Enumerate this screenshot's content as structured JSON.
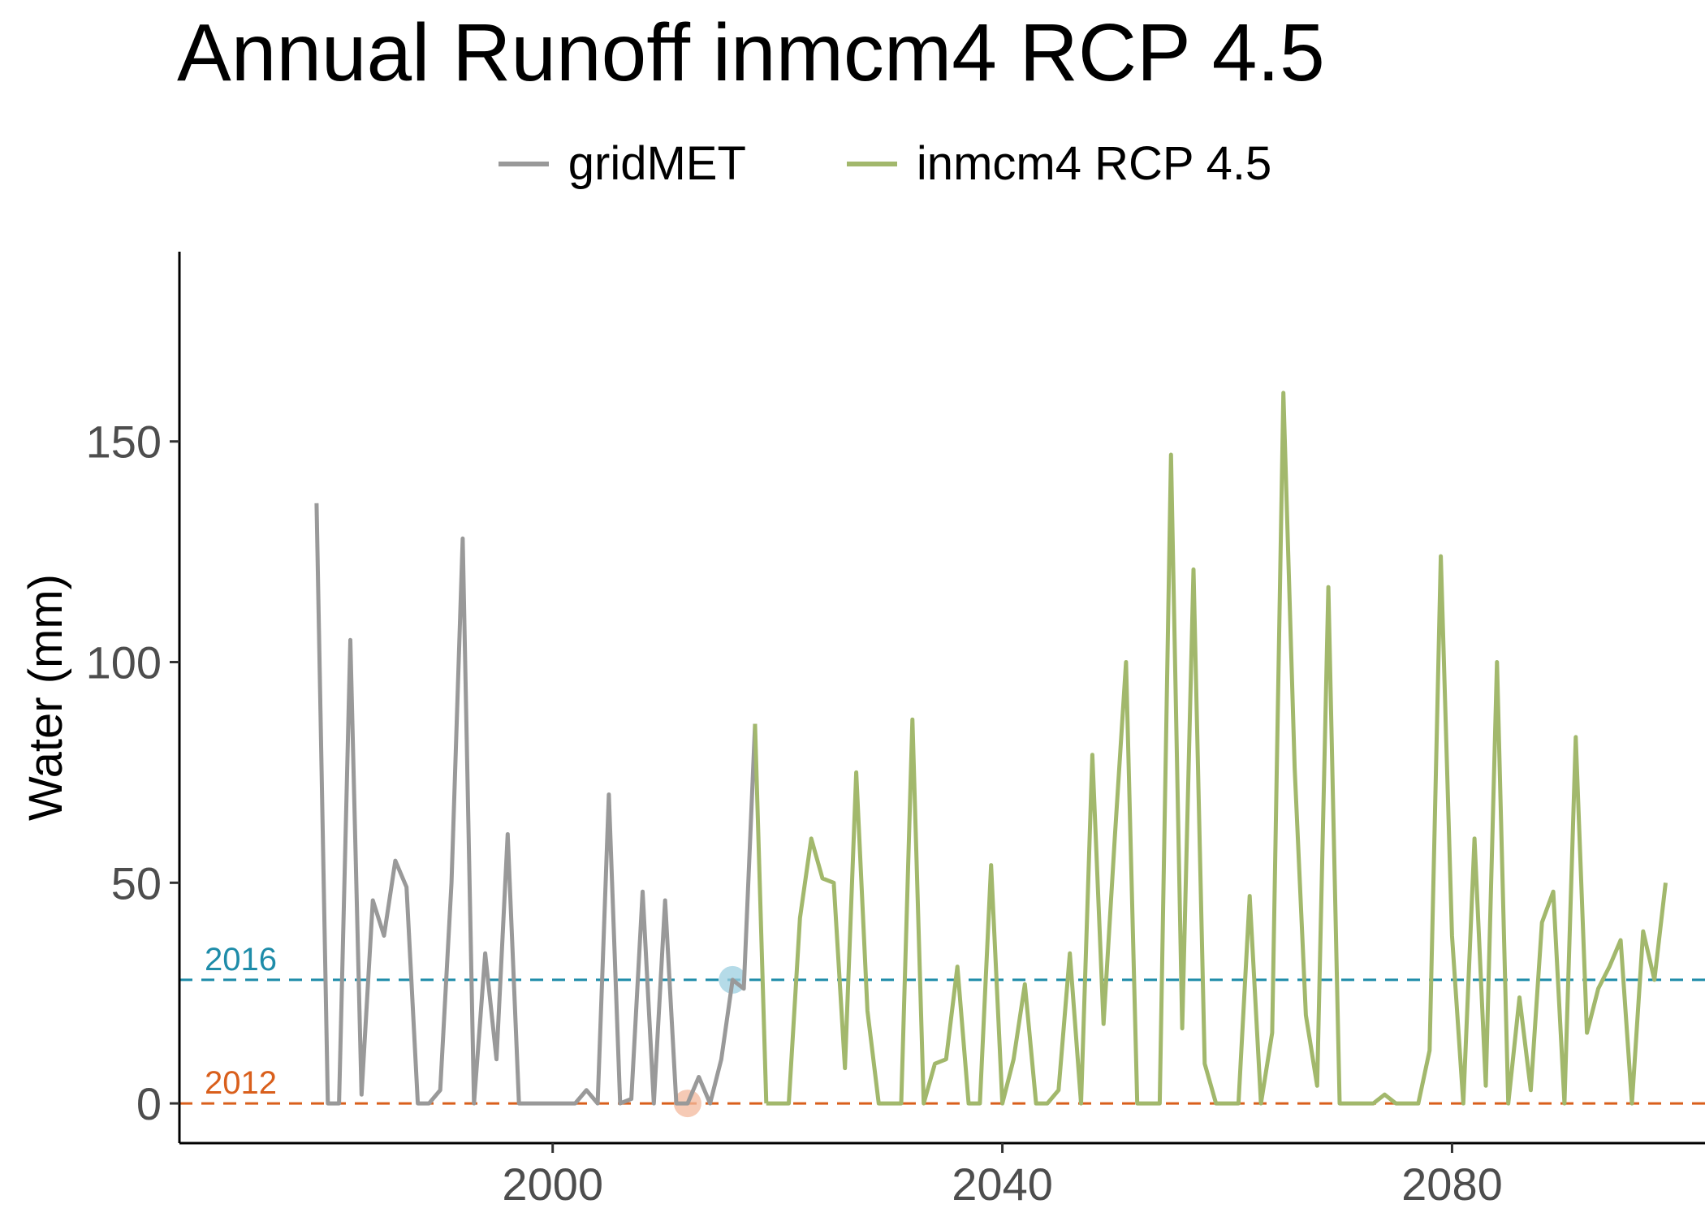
{
  "chart_data": {
    "type": "line",
    "title": "Annual Runoff inmcm4 RCP 4.5",
    "xlabel": "",
    "ylabel": "Water (mm)",
    "xlim": [
      1966.8,
      2102.5
    ],
    "ylim": [
      -9,
      193
    ],
    "x_ticks": [
      2000,
      2040,
      2080
    ],
    "x_tick_labels": [
      "2000",
      "2040",
      "2080"
    ],
    "y_ticks": [
      0,
      50,
      100,
      150
    ],
    "y_tick_labels": [
      "0",
      "50",
      "100",
      "150"
    ],
    "grid": false,
    "legend_position": "top",
    "series": [
      {
        "name": "gridMET",
        "color": "#999999",
        "x": [
          1979,
          1980,
          1981,
          1982,
          1983,
          1984,
          1985,
          1986,
          1987,
          1988,
          1989,
          1990,
          1991,
          1992,
          1993,
          1994,
          1995,
          1996,
          1997,
          1998,
          1999,
          2000,
          2001,
          2002,
          2003,
          2004,
          2005,
          2006,
          2007,
          2008,
          2009,
          2010,
          2011,
          2012,
          2013,
          2014,
          2015,
          2016,
          2017,
          2018
        ],
        "y": [
          136,
          0,
          0,
          105,
          2,
          46,
          38,
          55,
          49,
          0,
          0,
          3,
          50,
          128,
          0,
          34,
          10,
          61,
          0,
          0,
          0,
          0,
          0,
          0,
          3,
          0,
          70,
          0,
          1,
          48,
          0,
          46,
          0,
          0,
          6,
          0,
          10,
          28,
          26,
          86
        ]
      },
      {
        "name": "inmcm4 RCP 4.5",
        "color": "#a2b86c",
        "x": [
          2019,
          2020,
          2021,
          2022,
          2023,
          2024,
          2025,
          2026,
          2027,
          2028,
          2029,
          2030,
          2031,
          2032,
          2033,
          2034,
          2035,
          2036,
          2037,
          2038,
          2039,
          2040,
          2041,
          2042,
          2043,
          2044,
          2045,
          2046,
          2047,
          2048,
          2049,
          2050,
          2051,
          2052,
          2053,
          2054,
          2055,
          2056,
          2057,
          2058,
          2059,
          2060,
          2061,
          2062,
          2063,
          2064,
          2065,
          2066,
          2067,
          2068,
          2069,
          2070,
          2071,
          2072,
          2073,
          2074,
          2075,
          2076,
          2077,
          2078,
          2079,
          2080,
          2081,
          2082,
          2083,
          2084,
          2085,
          2086,
          2087,
          2088,
          2089,
          2090,
          2091,
          2092,
          2093,
          2094,
          2095,
          2096,
          2097,
          2098,
          2099
        ],
        "y": [
          0,
          0,
          0,
          42,
          60,
          51,
          50,
          8,
          75,
          21,
          0,
          0,
          0,
          87,
          0,
          9,
          10,
          31,
          0,
          0,
          54,
          0,
          10,
          27,
          0,
          0,
          3,
          34,
          0,
          79,
          18,
          60,
          100,
          0,
          0,
          0,
          147,
          17,
          121,
          9,
          0,
          0,
          0,
          47,
          0,
          16,
          161,
          76,
          20,
          4,
          117,
          0,
          0,
          0,
          0,
          2,
          0,
          0,
          0,
          12,
          124,
          38,
          0,
          60,
          4,
          100,
          0,
          24,
          3,
          41,
          48,
          0,
          83,
          16,
          26,
          31,
          37,
          0,
          39,
          28,
          50
        ]
      }
    ],
    "reference_lines": [
      {
        "label": "2016",
        "y": 28,
        "color": "#1e8ca9"
      },
      {
        "label": "2012",
        "y": 0,
        "color": "#d95f1c"
      }
    ],
    "highlight_points": [
      {
        "x": 2016,
        "y": 28,
        "color": "#9ccfe0"
      },
      {
        "x": 2012,
        "y": 0,
        "color": "#f3b89c"
      }
    ]
  }
}
